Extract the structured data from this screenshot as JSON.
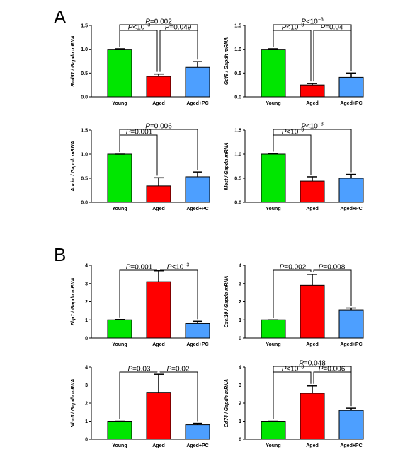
{
  "panels": [
    {
      "letter": "A"
    },
    {
      "letter": "B"
    }
  ],
  "chart_data": [
    {
      "type": "bar",
      "panel": "A",
      "ylabel": "Rad51 / Gapdh mRNA",
      "categories": [
        "Young",
        "Aged",
        "Aged+PC"
      ],
      "values": [
        1.0,
        0.43,
        0.62
      ],
      "errors": [
        0.01,
        0.05,
        0.12
      ],
      "colors": [
        "#00e600",
        "#ff0000",
        "#4d9fff"
      ],
      "ylim": [
        0,
        1.5
      ],
      "yticks": [
        "0.0",
        "0.5",
        "1.0",
        "1.5"
      ],
      "comparisons": [
        {
          "from": 0,
          "to": 2,
          "text": "P=0.002"
        },
        {
          "from": 0,
          "to": 1,
          "text": "P<10",
          "sup": "−3"
        },
        {
          "from": 1,
          "to": 2,
          "text": "P=0.049"
        }
      ]
    },
    {
      "type": "bar",
      "panel": "A",
      "ylabel": "Gdf9 / Gapdh mRNA",
      "categories": [
        "Young",
        "Aged",
        "Aged+PC"
      ],
      "values": [
        1.0,
        0.25,
        0.41
      ],
      "errors": [
        0.01,
        0.03,
        0.09
      ],
      "colors": [
        "#00e600",
        "#ff0000",
        "#4d9fff"
      ],
      "ylim": [
        0,
        1.5
      ],
      "yticks": [
        "0.0",
        "0.5",
        "1.0",
        "1.5"
      ],
      "comparisons": [
        {
          "from": 0,
          "to": 2,
          "text": "P<10",
          "sup": "−3"
        },
        {
          "from": 0,
          "to": 1,
          "text": "P<10",
          "sup": "−3"
        },
        {
          "from": 1,
          "to": 2,
          "text": "P=0.04"
        }
      ]
    },
    {
      "type": "bar",
      "panel": "A",
      "ylabel": "Aurka / Gapdh mRNA",
      "categories": [
        "Young",
        "Aged",
        "Aged+PC"
      ],
      "values": [
        1.0,
        0.34,
        0.53
      ],
      "errors": [
        0.0,
        0.17,
        0.1
      ],
      "colors": [
        "#00e600",
        "#ff0000",
        "#4d9fff"
      ],
      "ylim": [
        0,
        1.5
      ],
      "yticks": [
        "0.0",
        "0.5",
        "1.0",
        "1.5"
      ],
      "comparisons": [
        {
          "from": 0,
          "to": 2,
          "text": "P=0.006"
        },
        {
          "from": 0,
          "to": 1,
          "text": "P=0.001"
        }
      ]
    },
    {
      "type": "bar",
      "panel": "A",
      "ylabel": "Mest / Gapdh mRNA",
      "categories": [
        "Young",
        "Aged",
        "Aged+PC"
      ],
      "values": [
        1.0,
        0.44,
        0.5
      ],
      "errors": [
        0.01,
        0.09,
        0.08
      ],
      "colors": [
        "#00e600",
        "#ff0000",
        "#4d9fff"
      ],
      "ylim": [
        0,
        1.5
      ],
      "yticks": [
        "0.0",
        "0.5",
        "1.0",
        "1.5"
      ],
      "comparisons": [
        {
          "from": 0,
          "to": 2,
          "text": "P<10",
          "sup": "−3"
        },
        {
          "from": 0,
          "to": 1,
          "text": "P<10",
          "sup": "−3"
        }
      ]
    },
    {
      "type": "bar",
      "panel": "B",
      "ylabel": "Zbp1 / Gapdh mRNA",
      "categories": [
        "Young",
        "Aged",
        "Aged+PC"
      ],
      "values": [
        1.0,
        3.1,
        0.8
      ],
      "errors": [
        0.02,
        0.6,
        0.12
      ],
      "colors": [
        "#00e600",
        "#ff0000",
        "#4d9fff"
      ],
      "ylim": [
        0,
        4
      ],
      "yticks": [
        "0",
        "1",
        "2",
        "3",
        "4"
      ],
      "comparisons": [
        {
          "from": 0,
          "to": 1,
          "text": "P=0.001"
        },
        {
          "from": 1,
          "to": 2,
          "text": "P<10",
          "sup": "−3"
        }
      ]
    },
    {
      "type": "bar",
      "panel": "B",
      "ylabel": "Cxcl10 / Gapdh mRNA",
      "categories": [
        "Young",
        "Aged",
        "Aged+PC"
      ],
      "values": [
        1.0,
        2.9,
        1.55
      ],
      "errors": [
        0.0,
        0.6,
        0.1
      ],
      "colors": [
        "#00e600",
        "#ff0000",
        "#4d9fff"
      ],
      "ylim": [
        0,
        4
      ],
      "yticks": [
        "0",
        "1",
        "2",
        "3",
        "4"
      ],
      "comparisons": [
        {
          "from": 0,
          "to": 1,
          "text": "P=0.002"
        },
        {
          "from": 1,
          "to": 2,
          "text": "P=0.008"
        }
      ]
    },
    {
      "type": "bar",
      "panel": "B",
      "ylabel": "Nlrc5 / Gapdh mRNA",
      "categories": [
        "Young",
        "Aged",
        "Aged+PC"
      ],
      "values": [
        1.0,
        2.6,
        0.8
      ],
      "errors": [
        0.0,
        1.0,
        0.08
      ],
      "colors": [
        "#00e600",
        "#ff0000",
        "#4d9fff"
      ],
      "ylim": [
        0,
        4
      ],
      "yticks": [
        "0",
        "1",
        "2",
        "3",
        "4"
      ],
      "comparisons": [
        {
          "from": 0,
          "to": 1,
          "text": "P=0.03"
        },
        {
          "from": 1,
          "to": 2,
          "text": "P=0.02"
        }
      ]
    },
    {
      "type": "bar",
      "panel": "B",
      "ylabel": "Cd74 / Gapdh mRNA",
      "categories": [
        "Young",
        "Aged",
        "Aged+PC"
      ],
      "values": [
        1.0,
        2.55,
        1.6
      ],
      "errors": [
        0.0,
        0.4,
        0.12
      ],
      "colors": [
        "#00e600",
        "#ff0000",
        "#4d9fff"
      ],
      "ylim": [
        0,
        4
      ],
      "yticks": [
        "0",
        "1",
        "2",
        "3",
        "4"
      ],
      "comparisons": [
        {
          "from": 0,
          "to": 2,
          "text": "P=0.048"
        },
        {
          "from": 0,
          "to": 1,
          "text": "P<10",
          "sup": "−3"
        },
        {
          "from": 1,
          "to": 2,
          "text": "P=0.006"
        }
      ]
    }
  ]
}
